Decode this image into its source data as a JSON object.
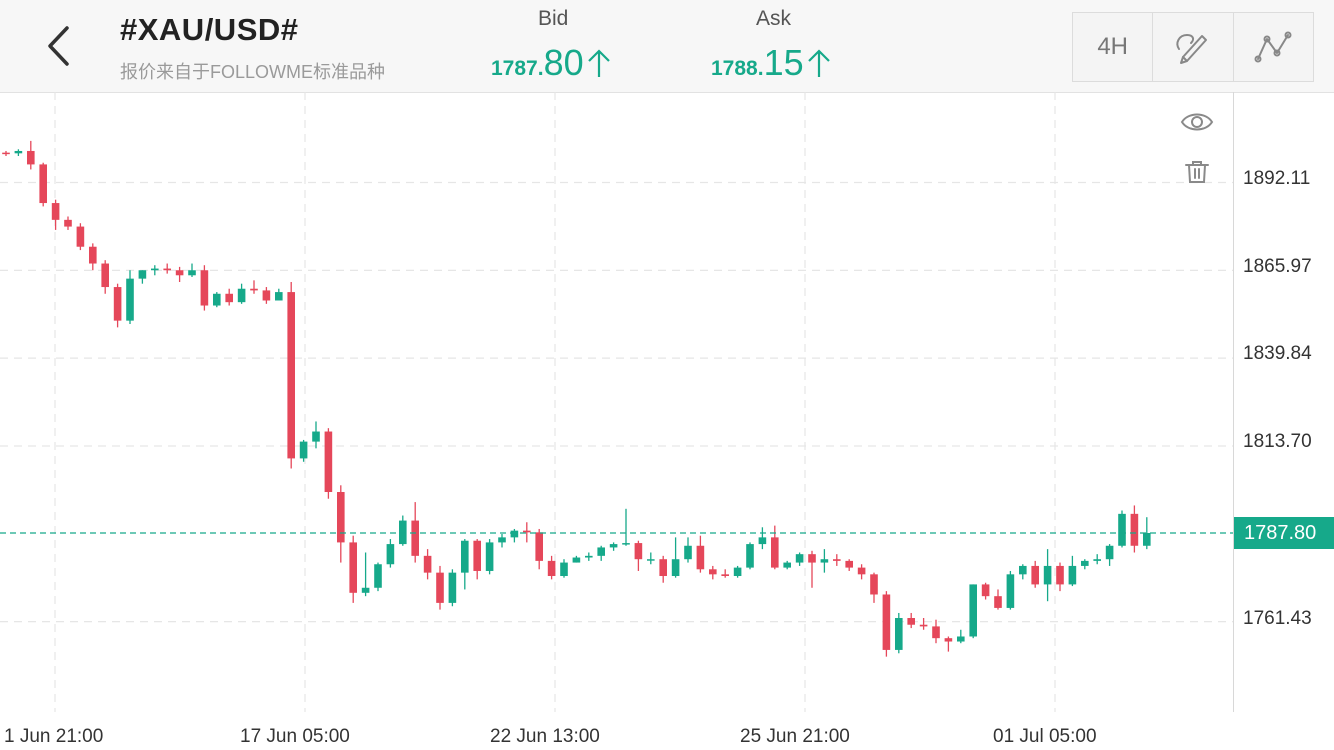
{
  "header": {
    "symbol": "#XAU/USD#",
    "source": "报价来自于FOLLOWME标准品种",
    "bid": {
      "label": "Bid",
      "main": "1787.",
      "big": "80",
      "arrow": "up"
    },
    "ask": {
      "label": "Ask",
      "main": "1788.",
      "big": "15",
      "arrow": "up"
    },
    "timeframe": "4H",
    "icons": [
      "back-arrow-icon",
      "draw-tool-icon",
      "indicator-icon"
    ]
  },
  "side_icons": [
    "eye-icon",
    "trash-icon"
  ],
  "colors": {
    "up": "#16a98a",
    "down": "#e5475a",
    "grid": "#e6e6e6"
  },
  "current_price": "1787.80",
  "chart_data": {
    "type": "candlestick",
    "title": "",
    "xlabel": "",
    "ylabel": "",
    "ylim": [
      1738,
      1912
    ],
    "y_ticks": [
      "1892.11",
      "1865.97",
      "1839.84",
      "1813.70",
      "1761.43"
    ],
    "x_ticks": [
      "1 Jun 21:00",
      "17 Jun 05:00",
      "22 Jun 13:00",
      "25 Jun 21:00",
      "01 Jul 05:00"
    ],
    "last_price": 1787.8,
    "candles": [
      [
        1901.0,
        1901.5,
        1900.0,
        1900.8
      ],
      [
        1900.8,
        1902.0,
        1900.0,
        1901.5
      ],
      [
        1901.5,
        1904.5,
        1896.0,
        1897.5
      ],
      [
        1897.5,
        1898.0,
        1885.0,
        1886.0
      ],
      [
        1886.0,
        1887.0,
        1878.0,
        1881.0
      ],
      [
        1881.0,
        1882.0,
        1878.0,
        1879.0
      ],
      [
        1879.0,
        1880.0,
        1872.0,
        1873.0
      ],
      [
        1873.0,
        1874.0,
        1866.0,
        1868.0
      ],
      [
        1868.0,
        1869.0,
        1859.0,
        1861.0
      ],
      [
        1861.0,
        1862.0,
        1849.0,
        1851.0
      ],
      [
        1851.0,
        1866.0,
        1850.0,
        1863.5
      ],
      [
        1863.5,
        1866.0,
        1862.0,
        1866.0
      ],
      [
        1866.0,
        1867.5,
        1864.5,
        1866.5
      ],
      [
        1866.5,
        1868.0,
        1865.0,
        1866.0
      ],
      [
        1866.0,
        1867.0,
        1862.5,
        1864.5
      ],
      [
        1864.5,
        1868.0,
        1864.0,
        1866.0
      ],
      [
        1866.0,
        1867.5,
        1854.0,
        1855.5
      ],
      [
        1855.5,
        1859.5,
        1855.0,
        1859.0
      ],
      [
        1859.0,
        1860.5,
        1855.5,
        1856.5
      ],
      [
        1856.5,
        1862.0,
        1856.0,
        1860.5
      ],
      [
        1860.5,
        1863.0,
        1859.0,
        1860.0
      ],
      [
        1860.0,
        1861.0,
        1856.0,
        1857.0
      ],
      [
        1857.0,
        1860.5,
        1857.0,
        1859.5
      ],
      [
        1859.5,
        1862.5,
        1807.0,
        1810.0
      ],
      [
        1810.0,
        1815.5,
        1809.0,
        1815.0
      ],
      [
        1815.0,
        1821.0,
        1813.0,
        1818.0
      ],
      [
        1818.0,
        1819.0,
        1798.0,
        1800.0
      ],
      [
        1800.0,
        1802.0,
        1779.0,
        1785.0
      ],
      [
        1785.0,
        1787.0,
        1767.0,
        1770.0
      ],
      [
        1770.0,
        1782.0,
        1769.0,
        1771.5
      ],
      [
        1771.5,
        1779.0,
        1770.5,
        1778.5
      ],
      [
        1778.5,
        1786.0,
        1777.5,
        1784.5
      ],
      [
        1784.5,
        1793.0,
        1784.0,
        1791.5
      ],
      [
        1791.5,
        1797.0,
        1779.0,
        1781.0
      ],
      [
        1781.0,
        1783.0,
        1774.0,
        1776.0
      ],
      [
        1776.0,
        1778.0,
        1765.0,
        1767.0
      ],
      [
        1767.0,
        1777.0,
        1766.0,
        1776.0
      ],
      [
        1776.0,
        1786.0,
        1771.0,
        1785.5
      ],
      [
        1785.5,
        1786.0,
        1774.0,
        1776.5
      ],
      [
        1776.5,
        1786.0,
        1775.5,
        1785.0
      ],
      [
        1785.0,
        1787.5,
        1783.5,
        1786.5
      ],
      [
        1786.5,
        1789.0,
        1785.0,
        1788.5
      ],
      [
        1788.5,
        1791.0,
        1785.0,
        1788.0
      ],
      [
        1788.0,
        1789.0,
        1777.0,
        1779.5
      ],
      [
        1779.5,
        1781.0,
        1774.0,
        1775.0
      ],
      [
        1775.0,
        1780.0,
        1774.5,
        1779.0
      ],
      [
        1779.0,
        1781.0,
        1779.0,
        1780.5
      ],
      [
        1780.5,
        1782.0,
        1779.5,
        1781.0
      ],
      [
        1781.0,
        1784.0,
        1779.5,
        1783.5
      ],
      [
        1783.5,
        1785.0,
        1782.5,
        1784.5
      ],
      [
        1784.5,
        1795.0,
        1784.0,
        1784.8
      ],
      [
        1784.8,
        1785.5,
        1776.5,
        1780.0
      ],
      [
        1780.0,
        1782.0,
        1778.5,
        1780.0
      ],
      [
        1780.0,
        1781.0,
        1773.0,
        1775.0
      ],
      [
        1775.0,
        1786.5,
        1774.5,
        1780.0
      ],
      [
        1780.0,
        1786.5,
        1779.0,
        1784.0
      ],
      [
        1784.0,
        1787.0,
        1776.0,
        1777.0
      ],
      [
        1777.0,
        1778.0,
        1774.0,
        1775.5
      ],
      [
        1775.5,
        1777.0,
        1774.5,
        1775.0
      ],
      [
        1775.0,
        1778.0,
        1774.5,
        1777.5
      ],
      [
        1777.5,
        1785.0,
        1777.0,
        1784.5
      ],
      [
        1784.5,
        1789.5,
        1783.0,
        1786.5
      ],
      [
        1786.5,
        1790.0,
        1777.0,
        1777.5
      ],
      [
        1777.5,
        1779.5,
        1777.0,
        1779.0
      ],
      [
        1779.0,
        1782.0,
        1778.0,
        1781.5
      ],
      [
        1781.5,
        1782.5,
        1771.5,
        1779.0
      ],
      [
        1779.0,
        1783.0,
        1776.0,
        1780.0
      ],
      [
        1780.0,
        1781.5,
        1778.0,
        1779.5
      ],
      [
        1779.5,
        1780.0,
        1776.5,
        1777.5
      ],
      [
        1777.5,
        1778.5,
        1774.0,
        1775.5
      ],
      [
        1775.5,
        1776.0,
        1767.0,
        1769.5
      ],
      [
        1769.5,
        1770.5,
        1751.0,
        1753.0
      ],
      [
        1753.0,
        1764.0,
        1752.0,
        1762.5
      ],
      [
        1762.5,
        1764.0,
        1759.5,
        1760.5
      ],
      [
        1760.5,
        1762.5,
        1759.0,
        1760.0
      ],
      [
        1760.0,
        1762.0,
        1755.0,
        1756.5
      ],
      [
        1756.5,
        1757.0,
        1752.5,
        1755.5
      ],
      [
        1755.5,
        1759.0,
        1755.0,
        1757.0
      ],
      [
        1757.0,
        1772.5,
        1756.5,
        1772.5
      ],
      [
        1772.5,
        1773.0,
        1768.0,
        1769.0
      ],
      [
        1769.0,
        1771.0,
        1765.0,
        1765.5
      ],
      [
        1765.5,
        1776.5,
        1765.0,
        1775.5
      ],
      [
        1775.5,
        1778.5,
        1774.0,
        1778.0
      ],
      [
        1778.0,
        1779.5,
        1771.5,
        1772.5
      ],
      [
        1772.5,
        1783.0,
        1767.5,
        1778.0
      ],
      [
        1778.0,
        1779.0,
        1770.5,
        1772.5
      ],
      [
        1772.5,
        1781.0,
        1772.0,
        1778.0
      ],
      [
        1778.0,
        1780.0,
        1777.0,
        1779.5
      ],
      [
        1779.5,
        1781.5,
        1778.5,
        1780.0
      ],
      [
        1780.0,
        1784.5,
        1778.0,
        1784.0
      ],
      [
        1784.0,
        1794.5,
        1783.5,
        1793.5
      ],
      [
        1793.5,
        1796.0,
        1782.0,
        1784.0
      ],
      [
        1784.0,
        1792.5,
        1783.0,
        1787.8
      ]
    ]
  }
}
